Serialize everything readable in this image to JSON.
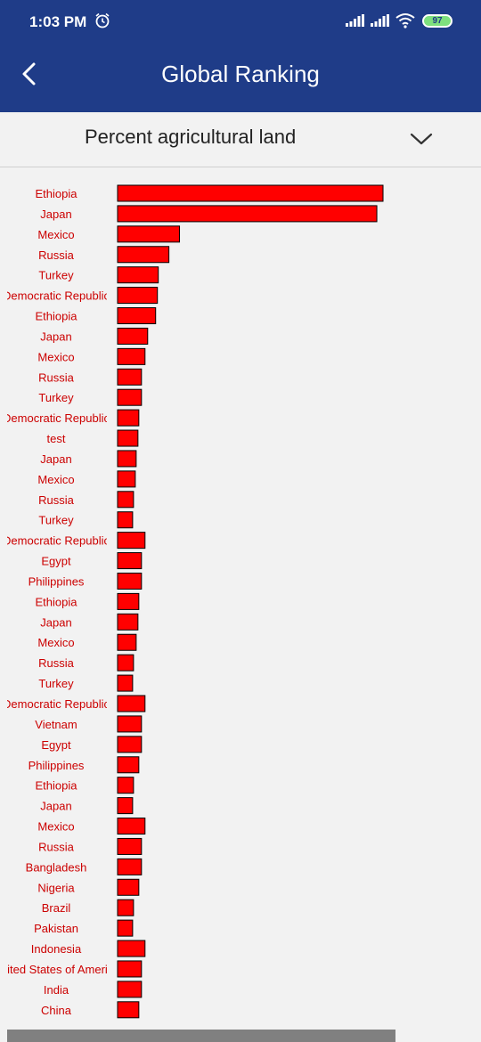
{
  "status_bar": {
    "time": "1:03 PM",
    "battery": "97"
  },
  "app_bar": {
    "title": "Global Ranking"
  },
  "selector": {
    "label": "Percent agricultural land"
  },
  "chart_data": {
    "type": "bar",
    "orientation": "horizontal",
    "categories": [
      "Ethiopia",
      "Japan",
      "Mexico",
      "Russia",
      "Turkey",
      "Democratic Republic",
      "Ethiopia",
      "Japan",
      "Mexico",
      "Russia",
      "Turkey",
      "Democratic Republic",
      "test",
      "Japan",
      "Mexico",
      "Russia",
      "Turkey",
      "Democratic Republic",
      "Egypt",
      "Philippines",
      "Ethiopia",
      "Japan",
      "Mexico",
      "Russia",
      "Turkey",
      "Democratic Republic",
      "Vietnam",
      "Egypt",
      "Philippines",
      "Ethiopia",
      "Japan",
      "Mexico",
      "Russia",
      "Bangladesh",
      "Nigeria",
      "Brazil",
      "Pakistan",
      "Indonesia",
      "United States of America",
      "India",
      "China"
    ],
    "values": [
      300,
      293,
      70,
      58,
      46,
      45,
      43,
      34,
      31,
      27,
      27,
      24,
      23,
      21,
      20,
      18,
      17,
      31,
      27,
      27,
      24,
      23,
      21,
      18,
      17,
      31,
      27,
      27,
      24,
      18,
      17,
      31,
      27,
      27,
      24,
      18,
      17,
      31,
      27,
      27,
      24
    ],
    "bar_color": "#ff0000",
    "label_color": "#cc0000",
    "xlim": [
      0,
      300
    ]
  }
}
